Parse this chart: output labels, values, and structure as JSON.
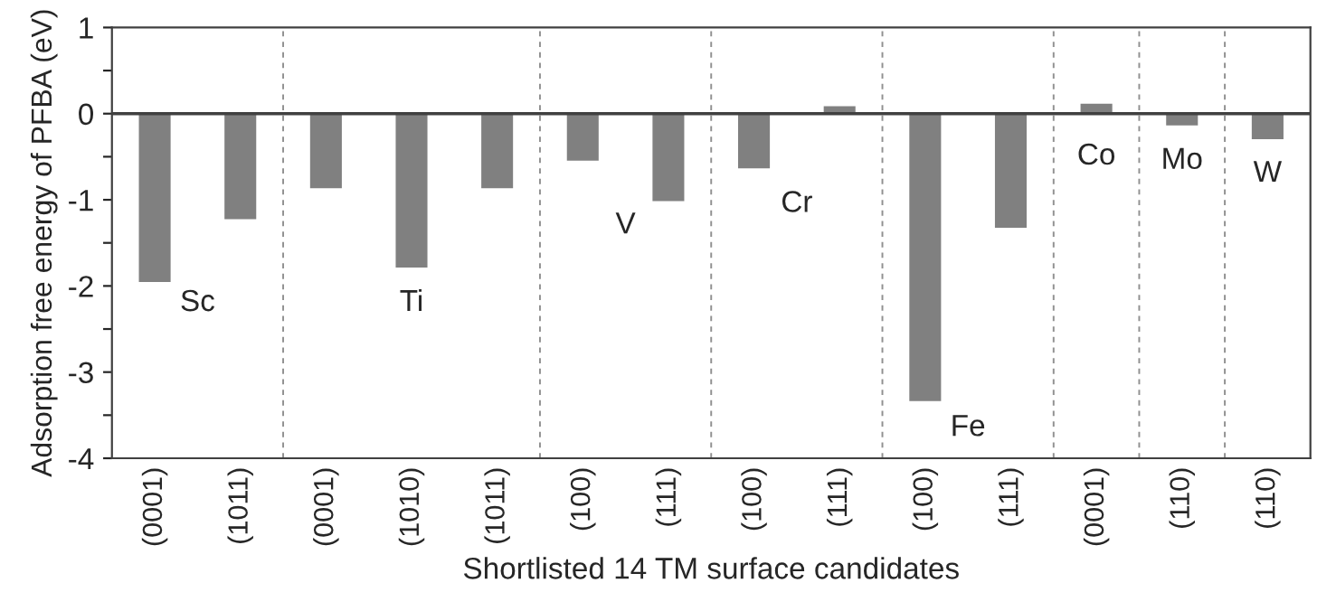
{
  "chart_data": {
    "type": "bar",
    "xlabel": "Shortlisted 14 TM surface candidates",
    "ylabel": "Adsorption free energy of PFBA (eV)",
    "categories": [
      "(0001)",
      "(1011)",
      "(0001)",
      "(1010)",
      "(1011)",
      "(100)",
      "(111)",
      "(100)",
      "(111)",
      "(100)",
      "(111)",
      "(0001)",
      "(110)",
      "(110)"
    ],
    "values": [
      -1.97,
      -1.24,
      -0.88,
      -1.8,
      -0.88,
      -0.56,
      -1.03,
      -0.65,
      0.1,
      -3.35,
      -1.34,
      0.13,
      -0.15,
      -0.31
    ],
    "color": "#808080",
    "ylim": [
      -4,
      1
    ],
    "yticks": [
      -4,
      {
        "value": -3.5,
        "label": null
      },
      -3,
      {
        "value": -2.5,
        "label": null
      },
      -2,
      {
        "value": -1.5,
        "label": null
      },
      -1,
      {
        "value": -0.5,
        "label": null
      },
      0,
      {
        "value": 0.5,
        "label": null
      },
      1
    ],
    "ref_lines": [
      {
        "axis": "y",
        "value": 0,
        "color": "#404040",
        "line_style": "solid"
      }
    ],
    "annotations": [
      "Sc",
      "Ti",
      "V",
      "Cr",
      "Fe",
      "Co",
      "Mo",
      "W"
    ],
    "grid": false,
    "legend": false
  }
}
